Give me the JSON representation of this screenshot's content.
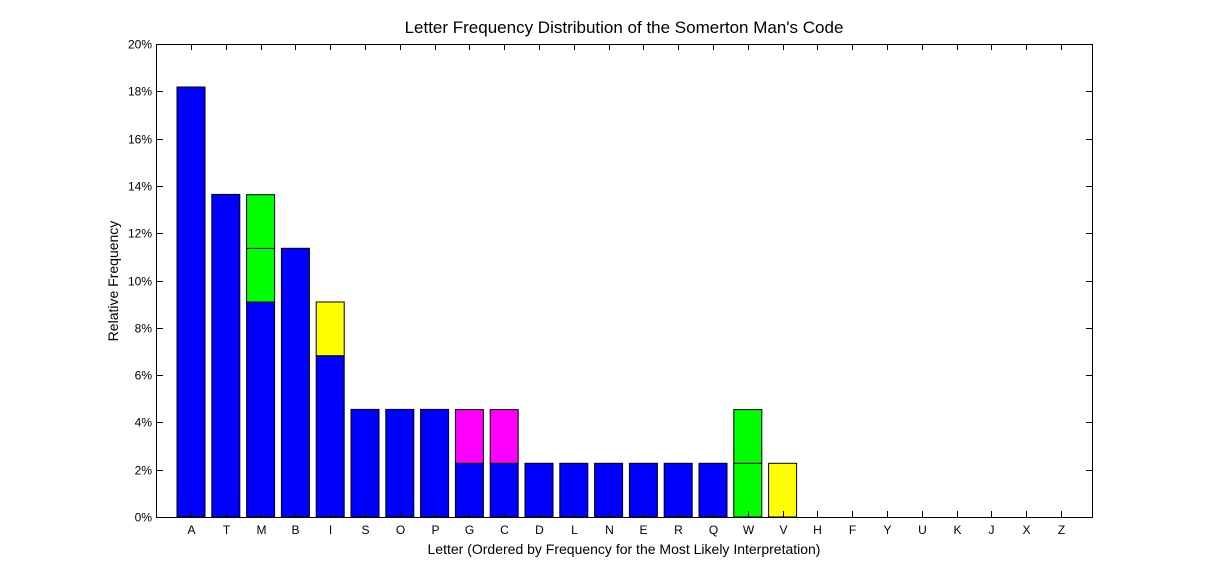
{
  "chart_data": {
    "type": "bar",
    "stacked": true,
    "title": "Letter Frequency Distribution of the Somerton Man's Code",
    "xlabel": "Letter (Ordered by Frequency for the Most Likely Interpretation)",
    "ylabel": "Relative Frequency",
    "ylim": [
      0,
      20
    ],
    "y_tick_values": [
      0,
      2,
      4,
      6,
      8,
      10,
      12,
      14,
      16,
      18,
      20
    ],
    "y_tick_labels": [
      "0%",
      "2%",
      "4%",
      "6%",
      "8%",
      "10%",
      "12%",
      "14%",
      "16%",
      "18%",
      "20%"
    ],
    "categories": [
      "A",
      "T",
      "M",
      "B",
      "I",
      "S",
      "O",
      "P",
      "G",
      "C",
      "D",
      "L",
      "N",
      "E",
      "R",
      "Q",
      "W",
      "V",
      "H",
      "F",
      "Y",
      "U",
      "K",
      "J",
      "X",
      "Z"
    ],
    "series": [
      {
        "color": "#0000ff",
        "values": [
          18.18,
          13.64,
          9.09,
          11.36,
          6.82,
          4.55,
          4.55,
          4.55,
          2.27,
          2.27,
          2.27,
          2.27,
          2.27,
          2.27,
          2.27,
          2.27,
          0,
          0,
          0,
          0,
          0,
          0,
          0,
          0,
          0,
          0
        ]
      },
      {
        "color": "#00ff00",
        "values": [
          0,
          0,
          2.27,
          0,
          0,
          0,
          0,
          0,
          0,
          0,
          0,
          0,
          0,
          0,
          0,
          0,
          2.27,
          0,
          0,
          0,
          0,
          0,
          0,
          0,
          0,
          0
        ]
      },
      {
        "color": "#00ff00",
        "values": [
          0,
          0,
          2.27,
          0,
          0,
          0,
          0,
          0,
          0,
          0,
          0,
          0,
          0,
          0,
          0,
          0,
          2.27,
          0,
          0,
          0,
          0,
          0,
          0,
          0,
          0,
          0
        ]
      },
      {
        "color": "#ffff00",
        "values": [
          0,
          0,
          0,
          0,
          2.27,
          0,
          0,
          0,
          0,
          0,
          0,
          0,
          0,
          0,
          0,
          0,
          0,
          2.27,
          0,
          0,
          0,
          0,
          0,
          0,
          0,
          0
        ]
      },
      {
        "color": "#ff00ff",
        "values": [
          0,
          0,
          0,
          0,
          0,
          0,
          0,
          0,
          2.27,
          2.27,
          0,
          0,
          0,
          0,
          0,
          0,
          0,
          0,
          0,
          0,
          0,
          0,
          0,
          0,
          0,
          0
        ]
      }
    ],
    "grid": false,
    "legend": "none"
  }
}
